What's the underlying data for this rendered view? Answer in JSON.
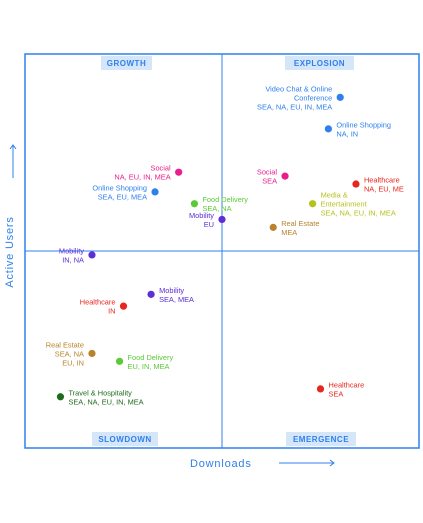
{
  "chart_data": {
    "type": "scatter",
    "xlabel": "Downloads",
    "ylabel": "Active Users",
    "quadrants": {
      "top_left": "GROWTH",
      "top_right": "EXPLOSION",
      "bottom_left": "SLOWDOWN",
      "bottom_right": "EMERGENCE"
    },
    "xlim": [
      0,
      100
    ],
    "ylim": [
      0,
      100
    ],
    "grid": false,
    "points": [
      {
        "label": [
          "Video Chat & Online",
          "Conference",
          "SEA, NA, EU, IN, MEA"
        ],
        "x": 80,
        "y": 89,
        "color": "#2f80ed",
        "anchor": "end",
        "lines": 3
      },
      {
        "label": [
          "Online Shopping",
          "NA, IN"
        ],
        "x": 77,
        "y": 81,
        "color": "#2f80ed",
        "anchor": "start"
      },
      {
        "label": [
          "Social",
          "NA, EU, IN, MEA"
        ],
        "x": 39,
        "y": 70,
        "color": "#e91e8c",
        "anchor": "end"
      },
      {
        "label": [
          "Social",
          "SEA"
        ],
        "x": 66,
        "y": 69,
        "color": "#e91e8c",
        "anchor": "end"
      },
      {
        "label": [
          "Healthcare",
          "NA, EU, ME"
        ],
        "x": 84,
        "y": 67,
        "color": "#e8261f",
        "anchor": "start"
      },
      {
        "label": [
          "Online Shopping",
          "SEA, EU, MEA"
        ],
        "x": 33,
        "y": 65,
        "color": "#2f80ed",
        "anchor": "end"
      },
      {
        "label": [
          "Food Delivery",
          "SEA, NA"
        ],
        "x": 43,
        "y": 62,
        "color": "#5cc936",
        "anchor": "start"
      },
      {
        "label": [
          "Media &",
          "Entertainment",
          "SEA, NA, EU, IN, MEA"
        ],
        "x": 73,
        "y": 62,
        "color": "#b5c21e",
        "anchor": "start"
      },
      {
        "label": [
          "Mobility",
          "EU"
        ],
        "x": 50,
        "y": 58,
        "color": "#5b2ed6",
        "anchor": "end"
      },
      {
        "label": [
          "Real Estate",
          "MEA"
        ],
        "x": 63,
        "y": 56,
        "color": "#b8832a",
        "anchor": "start"
      },
      {
        "label": [
          "Mobility",
          "IN, NA"
        ],
        "x": 17,
        "y": 49,
        "color": "#5b2ed6",
        "anchor": "end"
      },
      {
        "label": [
          "Mobility",
          "SEA, MEA"
        ],
        "x": 32,
        "y": 39,
        "color": "#5b2ed6",
        "anchor": "start"
      },
      {
        "label": [
          "Healthcare",
          "IN"
        ],
        "x": 25,
        "y": 36,
        "color": "#e8261f",
        "anchor": "end"
      },
      {
        "label": [
          "Real Estate",
          "SEA, NA",
          "EU, IN"
        ],
        "x": 17,
        "y": 24,
        "color": "#b8832a",
        "anchor": "end"
      },
      {
        "label": [
          "Food Delivery",
          "EU, IN, MEA"
        ],
        "x": 24,
        "y": 22,
        "color": "#5cc936",
        "anchor": "start"
      },
      {
        "label": [
          "Travel & Hospitality",
          "SEA, NA, EU, IN, MEA"
        ],
        "x": 9,
        "y": 13,
        "color": "#1e6b1e",
        "anchor": "start"
      },
      {
        "label": [
          "Healthcare",
          "SEA"
        ],
        "x": 75,
        "y": 15,
        "color": "#e8261f",
        "anchor": "start"
      }
    ]
  },
  "colors": {
    "accent": "#2f80ed",
    "badge_bg": "#d6e6f9",
    "badge_text": "#2f80ed"
  }
}
